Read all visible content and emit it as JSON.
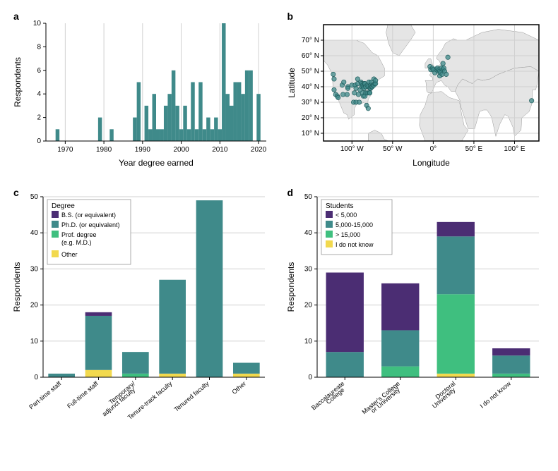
{
  "colors": {
    "teal": "#3f8a8a",
    "purple": "#4b2d73",
    "green": "#3fbf7f",
    "yellow": "#f2d94e",
    "grid": "#d0d0d0",
    "axis": "#333333",
    "map_land": "#e5e5e5",
    "map_border": "#999999",
    "map_bg": "#ffffff",
    "dot_stroke": "#1f5c5c"
  },
  "panel_labels": {
    "a": "a",
    "b": "b",
    "c": "c",
    "d": "d"
  },
  "panel_a": {
    "type": "bar",
    "xlabel": "Year degree earned",
    "ylabel": "Respondents",
    "xlim": [
      1965,
      2022
    ],
    "ylim": [
      0,
      10
    ],
    "ytick_step": 2,
    "x_major_ticks": [
      1970,
      1980,
      1990,
      2000,
      2010,
      2020
    ],
    "bar_color": "#3f8a8a",
    "bar_width_years": 1,
    "data": [
      {
        "year": 1968,
        "count": 1
      },
      {
        "year": 1979,
        "count": 2
      },
      {
        "year": 1982,
        "count": 1
      },
      {
        "year": 1988,
        "count": 2
      },
      {
        "year": 1989,
        "count": 5
      },
      {
        "year": 1991,
        "count": 3
      },
      {
        "year": 1992,
        "count": 1
      },
      {
        "year": 1993,
        "count": 4
      },
      {
        "year": 1994,
        "count": 1
      },
      {
        "year": 1995,
        "count": 1
      },
      {
        "year": 1996,
        "count": 3
      },
      {
        "year": 1997,
        "count": 4
      },
      {
        "year": 1998,
        "count": 6
      },
      {
        "year": 1999,
        "count": 3
      },
      {
        "year": 2000,
        "count": 1
      },
      {
        "year": 2001,
        "count": 3
      },
      {
        "year": 2002,
        "count": 1
      },
      {
        "year": 2003,
        "count": 5
      },
      {
        "year": 2004,
        "count": 1
      },
      {
        "year": 2005,
        "count": 5
      },
      {
        "year": 2006,
        "count": 1
      },
      {
        "year": 2007,
        "count": 2
      },
      {
        "year": 2008,
        "count": 1
      },
      {
        "year": 2009,
        "count": 2
      },
      {
        "year": 2010,
        "count": 1
      },
      {
        "year": 2011,
        "count": 10
      },
      {
        "year": 2012,
        "count": 4
      },
      {
        "year": 2013,
        "count": 3
      },
      {
        "year": 2014,
        "count": 5
      },
      {
        "year": 2015,
        "count": 5
      },
      {
        "year": 2016,
        "count": 4
      },
      {
        "year": 2017,
        "count": 6
      },
      {
        "year": 2018,
        "count": 6
      },
      {
        "year": 2020,
        "count": 4
      }
    ]
  },
  "panel_b": {
    "type": "map-scatter",
    "xlabel": "Longitude",
    "ylabel": "Latitude",
    "xlim": [
      -135,
      130
    ],
    "ylim": [
      5,
      80
    ],
    "xticks": [
      {
        "v": -100,
        "label": "100° W"
      },
      {
        "v": -50,
        "label": "50° W"
      },
      {
        "v": 0,
        "label": "0°"
      },
      {
        "v": 50,
        "label": "50° E"
      },
      {
        "v": 100,
        "label": "100° E"
      }
    ],
    "yticks": [
      {
        "v": 10,
        "label": "10° N"
      },
      {
        "v": 20,
        "label": "20° N"
      },
      {
        "v": 30,
        "label": "30° N"
      },
      {
        "v": 40,
        "label": "40° N"
      },
      {
        "v": 50,
        "label": "50° N"
      },
      {
        "v": 60,
        "label": "60° N"
      },
      {
        "v": 70,
        "label": "70° N"
      }
    ],
    "dot_color": "#3f8a8a",
    "dot_radius": 3.2,
    "points": [
      {
        "lon": -123,
        "lat": 48
      },
      {
        "lon": -122,
        "lat": 45
      },
      {
        "lon": -122,
        "lat": 38
      },
      {
        "lon": -120,
        "lat": 35
      },
      {
        "lon": -118,
        "lat": 34
      },
      {
        "lon": -117,
        "lat": 33
      },
      {
        "lon": -112,
        "lat": 41
      },
      {
        "lon": -111,
        "lat": 35
      },
      {
        "lon": -110,
        "lat": 43
      },
      {
        "lon": -106,
        "lat": 35
      },
      {
        "lon": -105,
        "lat": 40
      },
      {
        "lon": -105,
        "lat": 39
      },
      {
        "lon": -100,
        "lat": 41
      },
      {
        "lon": -98,
        "lat": 30
      },
      {
        "lon": -97,
        "lat": 36
      },
      {
        "lon": -96,
        "lat": 41
      },
      {
        "lon": -95,
        "lat": 39
      },
      {
        "lon": -95,
        "lat": 30
      },
      {
        "lon": -93,
        "lat": 45
      },
      {
        "lon": -93,
        "lat": 42
      },
      {
        "lon": -92,
        "lat": 35
      },
      {
        "lon": -91,
        "lat": 30
      },
      {
        "lon": -90,
        "lat": 38
      },
      {
        "lon": -89,
        "lat": 43
      },
      {
        "lon": -88,
        "lat": 42
      },
      {
        "lon": -88,
        "lat": 40
      },
      {
        "lon": -87,
        "lat": 36
      },
      {
        "lon": -87,
        "lat": 41
      },
      {
        "lon": -86,
        "lat": 40
      },
      {
        "lon": -86,
        "lat": 34
      },
      {
        "lon": -85,
        "lat": 42
      },
      {
        "lon": -85,
        "lat": 39
      },
      {
        "lon": -84,
        "lat": 34
      },
      {
        "lon": -84,
        "lat": 42
      },
      {
        "lon": -83,
        "lat": 40
      },
      {
        "lon": -83,
        "lat": 36
      },
      {
        "lon": -82,
        "lat": 28
      },
      {
        "lon": -81,
        "lat": 41
      },
      {
        "lon": -81,
        "lat": 36
      },
      {
        "lon": -80,
        "lat": 40
      },
      {
        "lon": -80,
        "lat": 26
      },
      {
        "lon": -79,
        "lat": 43
      },
      {
        "lon": -79,
        "lat": 36
      },
      {
        "lon": -78,
        "lat": 39
      },
      {
        "lon": -78,
        "lat": 36
      },
      {
        "lon": -77,
        "lat": 39
      },
      {
        "lon": -77,
        "lat": 41
      },
      {
        "lon": -76,
        "lat": 43
      },
      {
        "lon": -76,
        "lat": 40
      },
      {
        "lon": -75,
        "lat": 40
      },
      {
        "lon": -74,
        "lat": 41
      },
      {
        "lon": -73,
        "lat": 41
      },
      {
        "lon": -73,
        "lat": 45
      },
      {
        "lon": -72,
        "lat": 42
      },
      {
        "lon": -71,
        "lat": 42
      },
      {
        "lon": -71,
        "lat": 44
      },
      {
        "lon": -4,
        "lat": 53
      },
      {
        "lon": -3,
        "lat": 51
      },
      {
        "lon": -1,
        "lat": 52
      },
      {
        "lon": 0,
        "lat": 51
      },
      {
        "lon": 2,
        "lat": 49
      },
      {
        "lon": 4,
        "lat": 51
      },
      {
        "lon": 5,
        "lat": 52
      },
      {
        "lon": 6,
        "lat": 50
      },
      {
        "lon": 7,
        "lat": 51
      },
      {
        "lon": 8,
        "lat": 50
      },
      {
        "lon": 8,
        "lat": 47
      },
      {
        "lon": 9,
        "lat": 49
      },
      {
        "lon": 10,
        "lat": 52
      },
      {
        "lon": 11,
        "lat": 48
      },
      {
        "lon": 12,
        "lat": 51
      },
      {
        "lon": 12,
        "lat": 55
      },
      {
        "lon": 13,
        "lat": 52
      },
      {
        "lon": 14,
        "lat": 50
      },
      {
        "lon": 16,
        "lat": 48
      },
      {
        "lon": 18,
        "lat": 59
      },
      {
        "lon": 121,
        "lat": 31
      }
    ]
  },
  "panel_c": {
    "type": "stacked-bar",
    "xlabel": "",
    "ylabel": "Respondents",
    "ylim": [
      0,
      50
    ],
    "ytick_step": 10,
    "legend_title": "Degree",
    "legend": [
      {
        "key": "bs",
        "label": "B.S. (or equivalent)",
        "color": "#4b2d73"
      },
      {
        "key": "phd",
        "label": "Ph.D. (or equivalent)",
        "color": "#3f8a8a"
      },
      {
        "key": "prof",
        "label": "Prof. degree\n(e.g. M.D.)",
        "color": "#3fbf7f"
      },
      {
        "key": "other",
        "label": "Other",
        "color": "#f2d94e"
      }
    ],
    "stack_order": [
      "other",
      "prof",
      "phd",
      "bs"
    ],
    "categories": [
      {
        "label": "Part-time staff",
        "values": {
          "bs": 0,
          "phd": 1,
          "prof": 0,
          "other": 0
        }
      },
      {
        "label": "Full-time staff",
        "values": {
          "bs": 1,
          "phd": 15,
          "prof": 0,
          "other": 2
        }
      },
      {
        "label": "Temporary/\nadjunct faculty",
        "values": {
          "bs": 0,
          "phd": 6,
          "prof": 1,
          "other": 0
        }
      },
      {
        "label": "Tenure-track faculty",
        "values": {
          "bs": 0,
          "phd": 26,
          "prof": 0,
          "other": 1
        }
      },
      {
        "label": "Tenured faculty",
        "values": {
          "bs": 0,
          "phd": 49,
          "prof": 0,
          "other": 0
        }
      },
      {
        "label": "Other",
        "values": {
          "bs": 0,
          "phd": 3,
          "prof": 0,
          "other": 1
        }
      }
    ],
    "bar_width": 0.72
  },
  "panel_d": {
    "type": "stacked-bar",
    "xlabel": "",
    "ylabel": "Respondents",
    "ylim": [
      0,
      50
    ],
    "ytick_step": 10,
    "legend_title": "Students",
    "legend": [
      {
        "key": "lt5k",
        "label": "< 5,000",
        "color": "#4b2d73"
      },
      {
        "key": "m515",
        "label": "5,000-15,000",
        "color": "#3f8a8a"
      },
      {
        "key": "gt15k",
        "label": "> 15,000",
        "color": "#3fbf7f"
      },
      {
        "key": "dk",
        "label": "I do not know",
        "color": "#f2d94e"
      }
    ],
    "stack_order": [
      "dk",
      "gt15k",
      "m515",
      "lt5k"
    ],
    "categories": [
      {
        "label": "Baccalaureate\nCollege",
        "values": {
          "lt5k": 22,
          "m515": 7,
          "gt15k": 0,
          "dk": 0
        }
      },
      {
        "label": "Master's College\nor University",
        "values": {
          "lt5k": 13,
          "m515": 10,
          "gt15k": 3,
          "dk": 0
        }
      },
      {
        "label": "Doctoral\nUniversity",
        "values": {
          "lt5k": 4,
          "m515": 16,
          "gt15k": 22,
          "dk": 1
        }
      },
      {
        "label": "I do not know",
        "values": {
          "lt5k": 2,
          "m515": 5,
          "gt15k": 1,
          "dk": 0
        }
      }
    ],
    "bar_width": 0.68
  }
}
